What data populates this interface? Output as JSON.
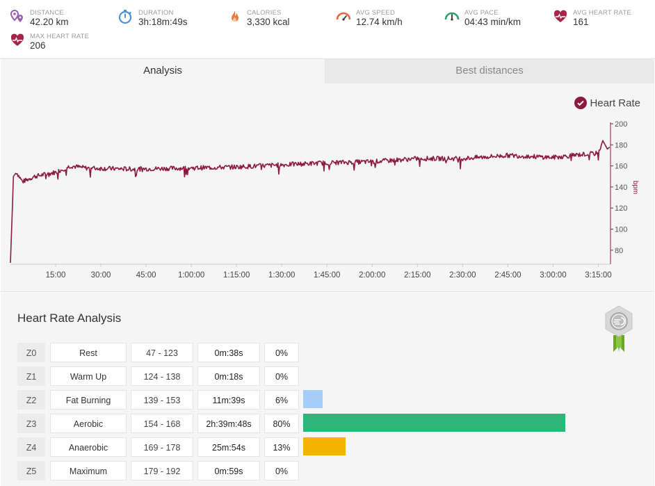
{
  "stats": [
    {
      "icon": "distance-icon",
      "label": "DISTANCE",
      "value": "42.20 km",
      "color": "#9b5fb0"
    },
    {
      "icon": "duration-icon",
      "label": "DURATION",
      "value": "3h:18m:49s",
      "color": "#4a90d9"
    },
    {
      "icon": "calories-icon",
      "label": "CALORIES",
      "value": "3,330 kcal",
      "color": "#f07a3a"
    },
    {
      "icon": "avg-speed-icon",
      "label": "AVG SPEED",
      "value": "12.74 km/h",
      "color": "#e8623a"
    },
    {
      "icon": "avg-pace-icon",
      "label": "AVG PACE",
      "value": "04:43 min/km",
      "color": "#2e9e6a"
    },
    {
      "icon": "avg-heart-rate-icon",
      "label": "AVG HEART RATE",
      "value": "161",
      "color": "#a8234a"
    },
    {
      "icon": "max-heart-rate-icon",
      "label": "MAX HEART RATE",
      "value": "206",
      "color": "#a8234a"
    }
  ],
  "tabs": {
    "analysis": "Analysis",
    "best": "Best distances"
  },
  "legend": {
    "label": "Heart Rate",
    "color": "#8b1a3d"
  },
  "chart_data": {
    "type": "line",
    "series": [
      {
        "name": "Heart Rate",
        "color": "#8b1a3d"
      }
    ],
    "y_unit": "bpm",
    "y_ticks": [
      80,
      100,
      120,
      140,
      160,
      180,
      200
    ],
    "ylim": [
      70,
      200
    ],
    "x_tick_labels": [
      "15:00",
      "30:00",
      "45:00",
      "1:00:00",
      "1:15:00",
      "1:30:00",
      "1:45:00",
      "2:00:00",
      "2:15:00",
      "2:30:00",
      "2:45:00",
      "3:00:00",
      "3:15:00"
    ],
    "x_ticks_seconds": [
      900,
      1800,
      2700,
      3600,
      4500,
      5400,
      6300,
      7200,
      8100,
      9000,
      9900,
      10800,
      11700
    ],
    "xlim_seconds": [
      0,
      11929
    ],
    "profile": [
      [
        0,
        68
      ],
      [
        60,
        150
      ],
      [
        120,
        154
      ],
      [
        240,
        145
      ],
      [
        480,
        150
      ],
      [
        900,
        154
      ],
      [
        1200,
        160
      ],
      [
        1500,
        158
      ],
      [
        2400,
        157
      ],
      [
        3600,
        158
      ],
      [
        4500,
        159
      ],
      [
        5400,
        161
      ],
      [
        6300,
        163
      ],
      [
        7200,
        164
      ],
      [
        8100,
        167
      ],
      [
        9000,
        167
      ],
      [
        9900,
        170
      ],
      [
        10800,
        168
      ],
      [
        11400,
        171
      ],
      [
        11700,
        172
      ],
      [
        11790,
        184
      ],
      [
        11880,
        176
      ],
      [
        11929,
        178
      ]
    ]
  },
  "analysis": {
    "title": "Heart Rate Analysis",
    "zones": [
      {
        "zone": "Z0",
        "name": "Rest",
        "range": "47 - 123",
        "time": "0m:38s",
        "pct": "0%",
        "share": 0,
        "color": ""
      },
      {
        "zone": "Z1",
        "name": "Warm Up",
        "range": "124 - 138",
        "time": "0m:18s",
        "pct": "0%",
        "share": 0,
        "color": ""
      },
      {
        "zone": "Z2",
        "name": "Fat Burning",
        "range": "139 - 153",
        "time": "11m:39s",
        "pct": "6%",
        "share": 0.06,
        "color": "#a6cdf7"
      },
      {
        "zone": "Z3",
        "name": "Aerobic",
        "range": "154 - 168",
        "time": "2h:39m:48s",
        "pct": "80%",
        "share": 0.8,
        "color": "#2eb67a"
      },
      {
        "zone": "Z4",
        "name": "Anaerobic",
        "range": "169 - 178",
        "time": "25m:54s",
        "pct": "13%",
        "share": 0.13,
        "color": "#f5b400"
      },
      {
        "zone": "Z5",
        "name": "Maximum",
        "range": "179 - 192",
        "time": "0m:59s",
        "pct": "0%",
        "share": 0,
        "color": ""
      }
    ]
  }
}
